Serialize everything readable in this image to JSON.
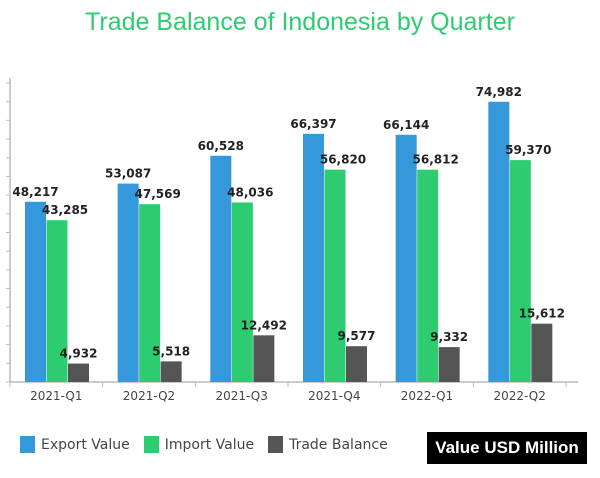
{
  "chart_data": {
    "type": "bar",
    "title": "Trade Balance of Indonesia by Quarter",
    "categories": [
      "2021-Q1",
      "2021-Q2",
      "2021-Q3",
      "2021-Q4",
      "2022-Q1",
      "2022-Q2"
    ],
    "series": [
      {
        "name": "Export Value",
        "color": "#3498db",
        "values": [
          48217,
          53087,
          60528,
          66397,
          66144,
          74982
        ],
        "labels": [
          "48,217",
          "53,087",
          "60,528",
          "66,397",
          "66,144",
          "74,982"
        ]
      },
      {
        "name": "Import Value",
        "color": "#2ecc71",
        "values": [
          43285,
          47569,
          48036,
          56820,
          56812,
          59370
        ],
        "labels": [
          "43,285",
          "47,569",
          "48,036",
          "56,820",
          "56,812",
          "59,370"
        ]
      },
      {
        "name": "Trade Balance",
        "color": "#555555",
        "values": [
          4932,
          5518,
          12492,
          9577,
          9332,
          15612
        ],
        "labels": [
          "4,932",
          "5,518",
          "12,492",
          "9,577",
          "9,332",
          "15,612"
        ]
      }
    ],
    "ylim": [
      0,
      80000
    ],
    "y_tick_step": 5000,
    "y_tick_labels_shown": false,
    "grid": false,
    "legend": "bottom-left",
    "unit_label": "Value USD Million"
  }
}
